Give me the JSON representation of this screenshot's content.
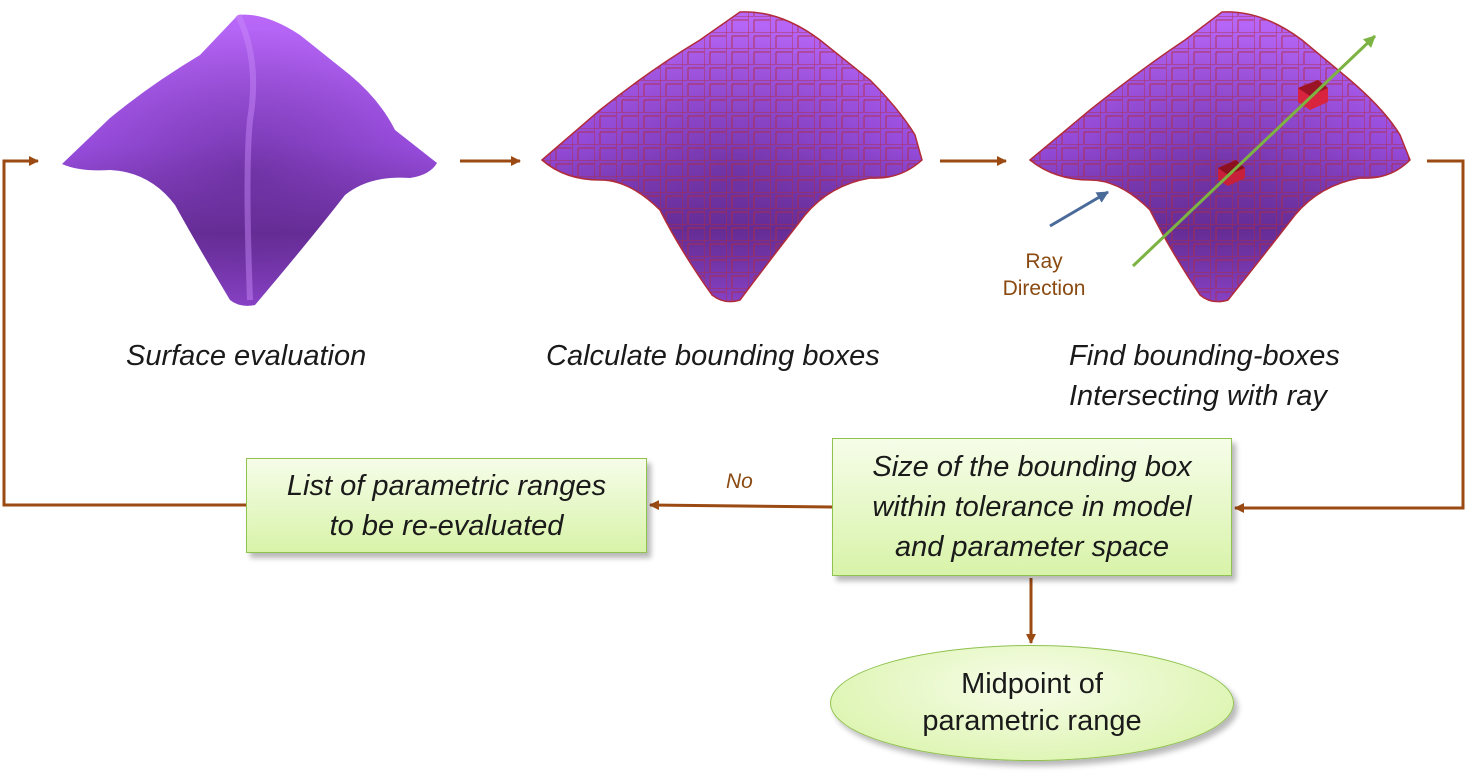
{
  "steps": {
    "surface_evaluation": "Surface evaluation",
    "calculate_bounding_boxes": "Calculate bounding boxes",
    "find_line1": "Find bounding-boxes",
    "find_line2": "Intersecting with ray"
  },
  "ray_label": {
    "line1": "Ray",
    "line2": "Direction"
  },
  "decision": {
    "line1": "Size of the bounding box",
    "line2": "within tolerance in model",
    "line3": "and parameter space"
  },
  "list_box": {
    "line1": "List of parametric ranges",
    "line2": "to be re-evaluated"
  },
  "no_label": "No",
  "result": {
    "line1": "Midpoint of",
    "line2": "parametric range"
  },
  "colors": {
    "arrow": "#9a4a12",
    "surface_light": "#b55cf6",
    "surface_dark": "#6a2f9a",
    "box_wire": "#b12c3a",
    "ray": "#7cb342",
    "ray_dir": "#4a6a9a",
    "box_fill": "#d7f2a8"
  }
}
